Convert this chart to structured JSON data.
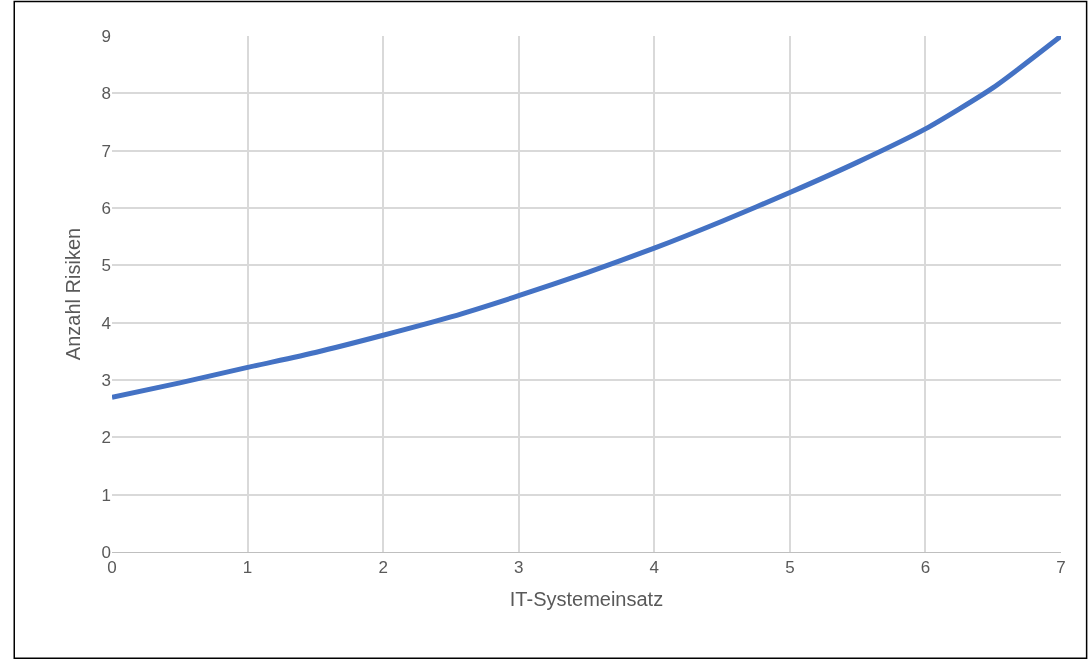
{
  "chart_data": {
    "type": "line",
    "xlabel": "IT-Systemeinsatz",
    "ylabel": "Anzahl Risiken",
    "x": [
      0,
      0.5,
      1,
      1.5,
      2,
      2.5,
      3,
      3.5,
      4,
      4.5,
      5,
      5.5,
      6,
      6.5,
      7
    ],
    "series": [
      {
        "color": "#4472c4",
        "values": [
          2.7,
          2.95,
          3.22,
          3.48,
          3.78,
          4.1,
          4.47,
          4.87,
          5.3,
          5.77,
          6.27,
          6.8,
          7.38,
          8.1,
          9
        ]
      }
    ],
    "xlim": [
      0,
      7
    ],
    "xticks": [
      0,
      1,
      2,
      3,
      4,
      5,
      6,
      7
    ],
    "ylim": [
      0,
      9
    ],
    "yticks": [
      0,
      1,
      2,
      3,
      4,
      5,
      6,
      7,
      8,
      9
    ],
    "grid": true,
    "marker": "none",
    "line_style": "solid"
  }
}
